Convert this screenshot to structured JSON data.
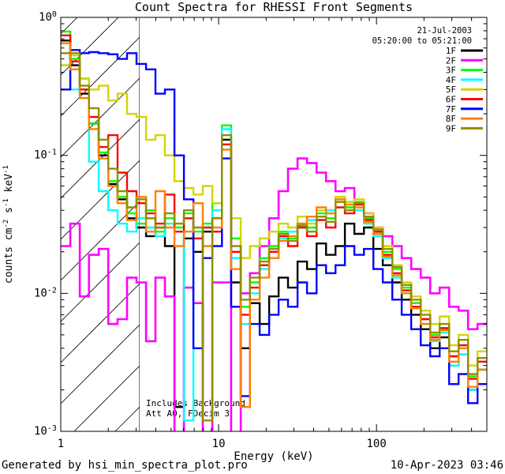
{
  "footer": {
    "generator": "Generated by hsi_min_spectra_plot.pro",
    "timestamp": "10-Apr-2023 03:46"
  },
  "chart_data": {
    "type": "line",
    "style": "step-histogram",
    "title": "Count Spectra for RHESSI Front Segments",
    "xlabel": "Energy (keV)",
    "ylabel_parts": [
      {
        "t": "counts cm",
        "sup": false
      },
      {
        "t": "-2",
        "sup": true
      },
      {
        "t": " s",
        "sup": false
      },
      {
        "t": "-1",
        "sup": true
      },
      {
        "t": " keV",
        "sup": false
      },
      {
        "t": "-1",
        "sup": true
      }
    ],
    "xscale": "log",
    "yscale": "log",
    "xlim": [
      1,
      500
    ],
    "ylim": [
      0.001,
      1
    ],
    "grid": false,
    "legend_position": "top-right-inside",
    "annotations": {
      "date": "21-Jul-2003",
      "time_range": "05:20:00 to 05:21:00",
      "notes": [
        "Includes Background",
        "Att A0, FDecim 3"
      ]
    },
    "hatch_region": {
      "xmin": 1,
      "xmax": 3.16,
      "style": "diagonal-lines"
    },
    "xticks": [
      {
        "label": "1",
        "value": 1
      },
      {
        "label": "10",
        "value": 10
      },
      {
        "label": "100",
        "value": 100
      }
    ],
    "yticks": [
      {
        "base": "10",
        "exp": "0",
        "value": 1
      },
      {
        "base": "10",
        "exp": "-1",
        "value": 0.1
      },
      {
        "base": "10",
        "exp": "-2",
        "value": 0.01
      },
      {
        "base": "10",
        "exp": "-3",
        "value": 0.001
      }
    ],
    "bin_edges": [
      1.0,
      1.15,
      1.32,
      1.51,
      1.74,
      2.0,
      2.29,
      2.63,
      3.02,
      3.47,
      3.98,
      4.57,
      5.25,
      6.03,
      6.92,
      7.94,
      9.12,
      10.5,
      12.0,
      13.8,
      15.8,
      18.2,
      20.9,
      24.0,
      27.5,
      31.6,
      36.3,
      41.7,
      47.9,
      55.0,
      63.1,
      72.4,
      83.2,
      95.5,
      109.6,
      125.9,
      144.5,
      165.9,
      190.5,
      218.8,
      251.2,
      288.4,
      331.1,
      380.2,
      436.5,
      501.2
    ],
    "series": [
      {
        "name": "1F",
        "color": "#000000",
        "values": [
          0.68,
          0.45,
          0.28,
          0.17,
          0.1,
          0.062,
          0.048,
          0.035,
          0.03,
          0.026,
          0.03,
          0.022,
          0.0015,
          0.025,
          0.02,
          0.028,
          0.035,
          0.13,
          0.012,
          0.004,
          0.0085,
          0.006,
          0.0095,
          0.013,
          0.011,
          0.017,
          0.015,
          0.023,
          0.019,
          0.022,
          0.032,
          0.027,
          0.03,
          0.021,
          0.016,
          0.012,
          0.009,
          0.007,
          0.0055,
          0.004,
          0.0048,
          0.003,
          0.0036,
          0.002,
          0.0028
        ]
      },
      {
        "name": "2F",
        "color": "#ff00ff",
        "values": [
          0.022,
          0.032,
          0.0095,
          0.019,
          0.021,
          0.006,
          0.0065,
          0.013,
          0.012,
          0.0045,
          0.013,
          0.0095,
          0.0008,
          0.011,
          0.0085,
          0.0008,
          0.012,
          0.012,
          0.0008,
          0.01,
          0.014,
          0.022,
          0.035,
          0.055,
          0.08,
          0.095,
          0.088,
          0.075,
          0.065,
          0.055,
          0.058,
          0.045,
          0.038,
          0.03,
          0.026,
          0.022,
          0.018,
          0.015,
          0.013,
          0.01,
          0.011,
          0.008,
          0.0075,
          0.0055,
          0.006
        ]
      },
      {
        "name": "3F",
        "color": "#00ff00",
        "values": [
          0.79,
          0.5,
          0.3,
          0.17,
          0.105,
          0.065,
          0.05,
          0.038,
          0.032,
          0.04,
          0.028,
          0.035,
          0.03,
          0.038,
          0.028,
          0.032,
          0.045,
          0.165,
          0.025,
          0.008,
          0.012,
          0.018,
          0.022,
          0.028,
          0.025,
          0.032,
          0.03,
          0.038,
          0.035,
          0.048,
          0.042,
          0.046,
          0.035,
          0.028,
          0.02,
          0.015,
          0.011,
          0.0085,
          0.0065,
          0.005,
          0.0055,
          0.0035,
          0.0042,
          0.0025,
          0.0032
        ]
      },
      {
        "name": "4F",
        "color": "#00ffff",
        "values": [
          0.45,
          0.3,
          0.36,
          0.09,
          0.055,
          0.04,
          0.032,
          0.028,
          0.035,
          0.03,
          0.026,
          0.032,
          0.028,
          0.0012,
          0.025,
          0.03,
          0.04,
          0.155,
          0.018,
          0.006,
          0.01,
          0.015,
          0.02,
          0.025,
          0.028,
          0.03,
          0.034,
          0.036,
          0.04,
          0.046,
          0.044,
          0.04,
          0.032,
          0.026,
          0.018,
          0.013,
          0.01,
          0.008,
          0.006,
          0.0045,
          0.0052,
          0.003,
          0.0036,
          0.002,
          0.0028
        ]
      },
      {
        "name": "5F",
        "color": "#d4d400",
        "values": [
          0.45,
          0.53,
          0.36,
          0.3,
          0.32,
          0.25,
          0.28,
          0.2,
          0.19,
          0.13,
          0.14,
          0.1,
          0.065,
          0.058,
          0.052,
          0.06,
          0.045,
          0.11,
          0.035,
          0.018,
          0.022,
          0.025,
          0.028,
          0.032,
          0.03,
          0.036,
          0.032,
          0.04,
          0.038,
          0.05,
          0.046,
          0.048,
          0.038,
          0.03,
          0.022,
          0.016,
          0.012,
          0.0095,
          0.0075,
          0.006,
          0.0068,
          0.0042,
          0.005,
          0.003,
          0.0038
        ]
      },
      {
        "name": "6F",
        "color": "#ff0000",
        "values": [
          0.74,
          0.48,
          0.3,
          0.19,
          0.115,
          0.14,
          0.075,
          0.055,
          0.045,
          0.038,
          0.032,
          0.052,
          0.028,
          0.035,
          0.025,
          0.03,
          0.028,
          0.12,
          0.02,
          0.007,
          0.011,
          0.016,
          0.02,
          0.026,
          0.022,
          0.03,
          0.026,
          0.034,
          0.03,
          0.042,
          0.038,
          0.044,
          0.034,
          0.028,
          0.019,
          0.014,
          0.0105,
          0.008,
          0.0065,
          0.0048,
          0.0056,
          0.0035,
          0.0042,
          0.0024,
          0.0032
        ]
      },
      {
        "name": "7F",
        "color": "#0000ff",
        "values": [
          0.3,
          0.58,
          0.55,
          0.56,
          0.55,
          0.54,
          0.5,
          0.55,
          0.46,
          0.42,
          0.28,
          0.3,
          0.1,
          0.048,
          0.004,
          0.018,
          0.022,
          0.095,
          0.008,
          0.0018,
          0.006,
          0.005,
          0.007,
          0.009,
          0.008,
          0.012,
          0.01,
          0.016,
          0.014,
          0.016,
          0.022,
          0.019,
          0.021,
          0.015,
          0.012,
          0.009,
          0.007,
          0.0055,
          0.0042,
          0.0035,
          0.004,
          0.0022,
          0.0026,
          0.0016,
          0.0022
        ]
      },
      {
        "name": "8F",
        "color": "#ff8000",
        "values": [
          0.65,
          0.42,
          0.26,
          0.155,
          0.095,
          0.06,
          0.045,
          0.034,
          0.05,
          0.028,
          0.055,
          0.03,
          0.022,
          0.028,
          0.045,
          0.022,
          0.03,
          0.11,
          0.015,
          0.0015,
          0.009,
          0.013,
          0.018,
          0.024,
          0.026,
          0.032,
          0.036,
          0.042,
          0.038,
          0.048,
          0.044,
          0.042,
          0.033,
          0.027,
          0.0185,
          0.0135,
          0.01,
          0.0078,
          0.006,
          0.0046,
          0.0054,
          0.0032,
          0.004,
          0.0021,
          0.0028
        ]
      },
      {
        "name": "9F",
        "color": "#8f8f00",
        "values": [
          0.55,
          0.55,
          0.32,
          0.22,
          0.13,
          0.08,
          0.055,
          0.042,
          0.048,
          0.035,
          0.03,
          0.038,
          0.032,
          0.04,
          0.03,
          0.0012,
          0.035,
          0.14,
          0.022,
          0.009,
          0.013,
          0.017,
          0.021,
          0.027,
          0.024,
          0.031,
          0.028,
          0.036,
          0.033,
          0.046,
          0.04,
          0.045,
          0.036,
          0.029,
          0.021,
          0.0155,
          0.0115,
          0.009,
          0.007,
          0.0052,
          0.006,
          0.0038,
          0.0046,
          0.0026,
          0.0034
        ]
      }
    ]
  }
}
